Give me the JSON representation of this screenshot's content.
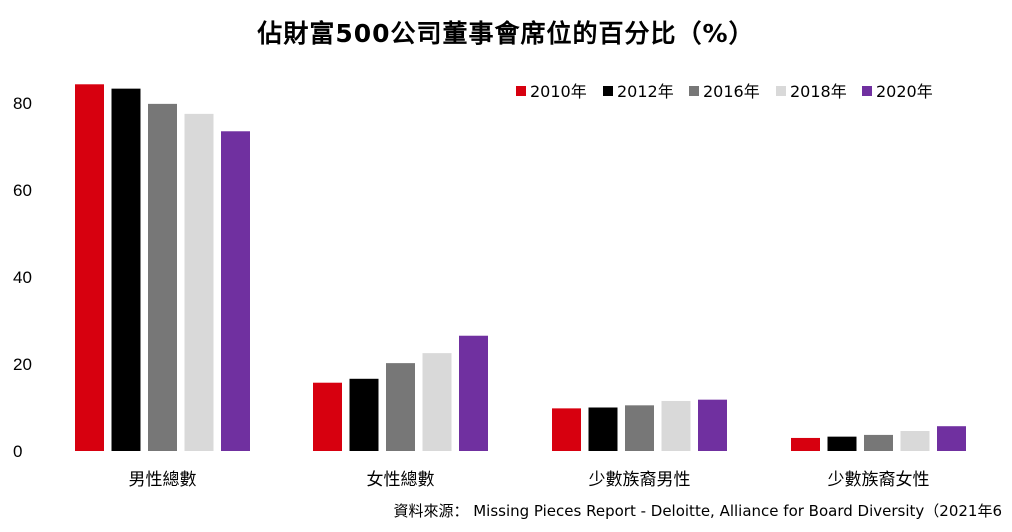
{
  "chart_data": {
    "type": "bar",
    "title": "佔財富500公司董事會席位的百分比（%）",
    "categories": [
      "男性總數",
      "女性總數",
      "少數族裔男性",
      "少數族裔女性"
    ],
    "series": [
      {
        "name": "2010年",
        "color": "#d7000f",
        "values": [
          84.3,
          15.7,
          9.8,
          3.0
        ]
      },
      {
        "name": "2012年",
        "color": "#000000",
        "values": [
          83.3,
          16.6,
          10.0,
          3.3
        ]
      },
      {
        "name": "2016年",
        "color": "#777777",
        "values": [
          79.8,
          20.2,
          10.5,
          3.7
        ]
      },
      {
        "name": "2018年",
        "color": "#d9d9d9",
        "values": [
          77.5,
          22.5,
          11.5,
          4.6
        ]
      },
      {
        "name": "2020年",
        "color": "#7030a0",
        "values": [
          73.5,
          26.5,
          11.8,
          5.7
        ]
      }
    ],
    "yticks": [
      0,
      20,
      40,
      60,
      80
    ],
    "ylim": [
      0,
      85
    ],
    "grid": false,
    "legend": "top-right"
  },
  "source": "資料來源： Missing Pieces Report - Deloitte, Alliance for Board Diversity（2021年6"
}
